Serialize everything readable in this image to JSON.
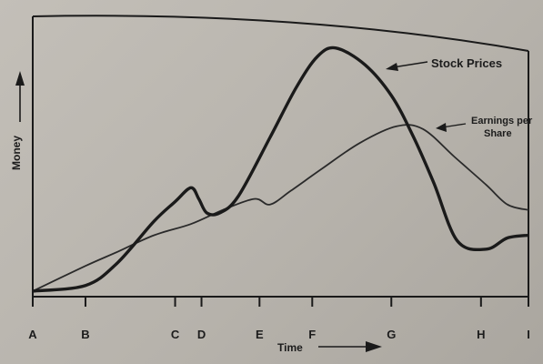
{
  "chart_data": {
    "type": "line",
    "title": "",
    "xlabel": "Time",
    "ylabel": "Money",
    "x_ticks": [
      "A",
      "B",
      "C",
      "D",
      "E",
      "F",
      "G",
      "H",
      "I"
    ],
    "grid": false,
    "legend": "annotations",
    "series": [
      {
        "name": "Stock Prices",
        "points": [
          [
            0,
            0.02
          ],
          [
            1,
            0.04
          ],
          [
            1.6,
            0.12
          ],
          [
            2.3,
            0.27
          ],
          [
            2.7,
            0.34
          ],
          [
            3.0,
            0.39
          ],
          [
            3.15,
            0.35
          ],
          [
            3.3,
            0.3
          ],
          [
            3.55,
            0.3
          ],
          [
            3.9,
            0.36
          ],
          [
            4.5,
            0.57
          ],
          [
            5.0,
            0.75
          ],
          [
            5.4,
            0.86
          ],
          [
            5.75,
            0.89
          ],
          [
            6.3,
            0.83
          ],
          [
            6.8,
            0.72
          ],
          [
            7.2,
            0.58
          ],
          [
            7.6,
            0.41
          ],
          [
            8.05,
            0.2
          ],
          [
            8.6,
            0.17
          ],
          [
            9.0,
            0.21
          ],
          [
            9.4,
            0.22
          ]
        ]
      },
      {
        "name": "Earnings per Share",
        "points": [
          [
            0,
            0.02
          ],
          [
            1,
            0.11
          ],
          [
            1.6,
            0.16
          ],
          [
            2.3,
            0.22
          ],
          [
            3.0,
            0.26
          ],
          [
            3.6,
            0.31
          ],
          [
            4.2,
            0.35
          ],
          [
            4.5,
            0.33
          ],
          [
            4.9,
            0.38
          ],
          [
            5.5,
            0.46
          ],
          [
            6.2,
            0.55
          ],
          [
            6.9,
            0.61
          ],
          [
            7.4,
            0.6
          ],
          [
            8.0,
            0.5
          ],
          [
            8.6,
            0.4
          ],
          [
            9.0,
            0.33
          ],
          [
            9.4,
            0.31
          ]
        ]
      }
    ],
    "x_positions": [
      0,
      1,
      2.7,
      3.2,
      4.3,
      5.3,
      6.8,
      8.5,
      9.4
    ]
  },
  "colors": {
    "stock": "#1a1a1a",
    "earnings": "#2a2a2a",
    "axis": "#1a1a1a"
  }
}
